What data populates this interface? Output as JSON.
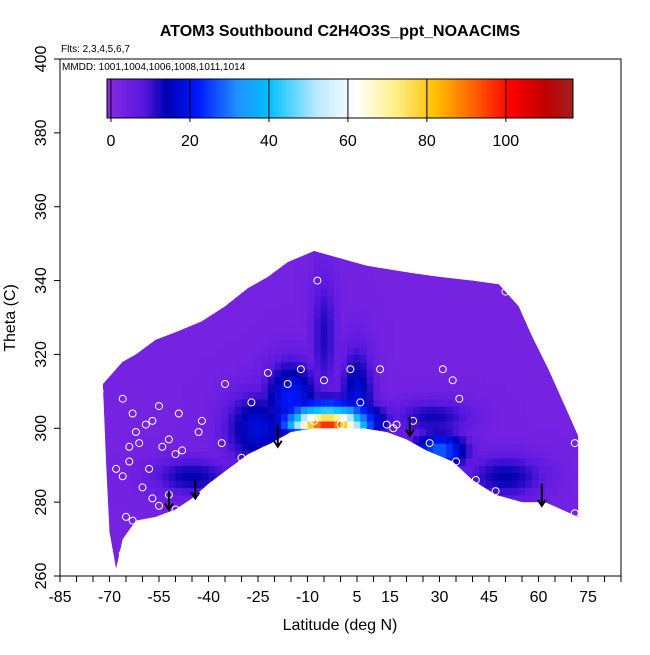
{
  "chart_data": {
    "type": "heatmap",
    "title": "ATOM3 Southbound C2H4O3S_ppt_NOAACIMS",
    "flights_label": "Flts: 2,3,4,5,6,7",
    "dates_label": "MMDD: 1001,1004,1006,1008,1011,1014",
    "xlabel": "Latitude (deg N)",
    "ylabel": "Theta (C)",
    "xlim": [
      -85,
      85
    ],
    "ylim": [
      260,
      400
    ],
    "x_ticks": [
      "-85",
      "-70",
      "-55",
      "-40",
      "-25",
      "-10",
      "5",
      "15",
      "30",
      "45",
      "60",
      "75"
    ],
    "x_tick_values": [
      -85,
      -70,
      -55,
      -40,
      -25,
      -10,
      5,
      15,
      30,
      45,
      60,
      75
    ],
    "x_minor_step": 5,
    "y_ticks": [
      "260",
      "280",
      "300",
      "320",
      "340",
      "360",
      "380",
      "400"
    ],
    "y_tick_values": [
      260,
      280,
      300,
      320,
      340,
      360,
      380,
      400
    ],
    "colorbar": {
      "range": [
        -1,
        117
      ],
      "ticks": [
        "0",
        "20",
        "40",
        "60",
        "80",
        "100"
      ],
      "tick_values": [
        0,
        20,
        40,
        60,
        80,
        100
      ],
      "stops": [
        {
          "v": -1,
          "color": "#8a2be2"
        },
        {
          "v": 8,
          "color": "#5a18e0"
        },
        {
          "v": 14,
          "color": "#0000b0"
        },
        {
          "v": 22,
          "color": "#0018ff"
        },
        {
          "v": 32,
          "color": "#2090ff"
        },
        {
          "v": 40,
          "color": "#00c0ff"
        },
        {
          "v": 52,
          "color": "#b8e8ff"
        },
        {
          "v": 62,
          "color": "#ffffff"
        },
        {
          "v": 72,
          "color": "#fff088"
        },
        {
          "v": 82,
          "color": "#ffc000"
        },
        {
          "v": 92,
          "color": "#ff6000"
        },
        {
          "v": 101,
          "color": "#ff0000"
        },
        {
          "v": 110,
          "color": "#c00000"
        },
        {
          "v": 117,
          "color": "#a02020"
        }
      ]
    },
    "field": {
      "background_value": 3,
      "upper_boundary": [
        [
          -72,
          312
        ],
        [
          -66,
          318
        ],
        [
          -62,
          320
        ],
        [
          -56,
          324
        ],
        [
          -50,
          326
        ],
        [
          -42,
          329
        ],
        [
          -35,
          333
        ],
        [
          -28,
          338
        ],
        [
          -22,
          341
        ],
        [
          -16,
          345
        ],
        [
          -8,
          348
        ],
        [
          0,
          346
        ],
        [
          8,
          344
        ],
        [
          15,
          343
        ],
        [
          22,
          342
        ],
        [
          30,
          341
        ],
        [
          40,
          340
        ],
        [
          48,
          339
        ],
        [
          54,
          333
        ],
        [
          58,
          325
        ],
        [
          63,
          316
        ],
        [
          68,
          306
        ],
        [
          72,
          298
        ]
      ],
      "lower_boundary": [
        [
          72,
          276
        ],
        [
          62,
          280
        ],
        [
          55,
          280
        ],
        [
          47,
          282
        ],
        [
          40,
          286
        ],
        [
          34,
          291
        ],
        [
          26,
          294
        ],
        [
          20,
          297
        ],
        [
          14,
          299
        ],
        [
          7,
          300
        ],
        [
          0,
          300
        ],
        [
          -8,
          300
        ],
        [
          -15,
          299
        ],
        [
          -21,
          296
        ],
        [
          -28,
          293
        ],
        [
          -34,
          289
        ],
        [
          -40,
          285
        ],
        [
          -45,
          281
        ],
        [
          -50,
          278
        ],
        [
          -56,
          276
        ],
        [
          -62,
          275
        ],
        [
          -66,
          270
        ],
        [
          -68,
          262
        ],
        [
          -70,
          272
        ],
        [
          -71,
          290
        ]
      ],
      "features": [
        {
          "lat": -4,
          "theta": 301.5,
          "value": 100,
          "dlat": 11,
          "dtheta": 2.8
        },
        {
          "lat": -4,
          "theta": 302,
          "value": 60,
          "dlat": 13,
          "dtheta": 5
        },
        {
          "lat": 5,
          "theta": 305,
          "value": 20,
          "dlat": 5,
          "dtheta": 16
        },
        {
          "lat": -15,
          "theta": 308,
          "value": 22,
          "dlat": 8,
          "dtheta": 10
        },
        {
          "lat": -25,
          "theta": 300,
          "value": 18,
          "dlat": 10,
          "dtheta": 10
        },
        {
          "lat": -45,
          "theta": 287,
          "value": 14,
          "dlat": 12,
          "dtheta": 5
        },
        {
          "lat": 30,
          "theta": 294,
          "value": 28,
          "dlat": 8,
          "dtheta": 5
        },
        {
          "lat": 50,
          "theta": 287,
          "value": 14,
          "dlat": 12,
          "dtheta": 6
        },
        {
          "lat": 28,
          "theta": 303,
          "value": 13,
          "dlat": 12,
          "dtheta": 5
        },
        {
          "lat": -5,
          "theta": 325,
          "value": 12,
          "dlat": 4,
          "dtheta": 18
        }
      ],
      "samples": [
        {
          "lat": -73,
          "theta": 310
        },
        {
          "lat": -66,
          "theta": 308
        },
        {
          "lat": -63,
          "theta": 304
        },
        {
          "lat": -62,
          "theta": 299
        },
        {
          "lat": -61,
          "theta": 296
        },
        {
          "lat": -64,
          "theta": 295
        },
        {
          "lat": -59,
          "theta": 301
        },
        {
          "lat": -57,
          "theta": 302
        },
        {
          "lat": -55,
          "theta": 306
        },
        {
          "lat": -52,
          "theta": 297
        },
        {
          "lat": -54,
          "theta": 295
        },
        {
          "lat": -50,
          "theta": 293
        },
        {
          "lat": -48,
          "theta": 294
        },
        {
          "lat": -49,
          "theta": 304
        },
        {
          "lat": -43,
          "theta": 299
        },
        {
          "lat": -42,
          "theta": 302
        },
        {
          "lat": -58,
          "theta": 289
        },
        {
          "lat": -60,
          "theta": 284
        },
        {
          "lat": -57,
          "theta": 281
        },
        {
          "lat": -55,
          "theta": 279
        },
        {
          "lat": -52,
          "theta": 282
        },
        {
          "lat": -50,
          "theta": 278
        },
        {
          "lat": -64,
          "theta": 291
        },
        {
          "lat": -66,
          "theta": 287
        },
        {
          "lat": -68,
          "theta": 289
        },
        {
          "lat": -63,
          "theta": 275
        },
        {
          "lat": -65,
          "theta": 276
        },
        {
          "lat": -61,
          "theta": 274
        },
        {
          "lat": -66,
          "theta": 266
        },
        {
          "lat": -35,
          "theta": 312
        },
        {
          "lat": -36,
          "theta": 296
        },
        {
          "lat": -30,
          "theta": 292
        },
        {
          "lat": -27,
          "theta": 307
        },
        {
          "lat": -22,
          "theta": 315
        },
        {
          "lat": -23,
          "theta": 294
        },
        {
          "lat": -12,
          "theta": 316
        },
        {
          "lat": -16,
          "theta": 312
        },
        {
          "lat": -8,
          "theta": 302
        },
        {
          "lat": -7,
          "theta": 340
        },
        {
          "lat": -5,
          "theta": 313
        },
        {
          "lat": 0,
          "theta": 301
        },
        {
          "lat": 3,
          "theta": 316
        },
        {
          "lat": 6,
          "theta": 307
        },
        {
          "lat": 12,
          "theta": 316
        },
        {
          "lat": 14,
          "theta": 301
        },
        {
          "lat": 16,
          "theta": 300
        },
        {
          "lat": 17,
          "theta": 301
        },
        {
          "lat": 22,
          "theta": 302
        },
        {
          "lat": 27,
          "theta": 296
        },
        {
          "lat": 31,
          "theta": 316
        },
        {
          "lat": 34,
          "theta": 313
        },
        {
          "lat": 36,
          "theta": 308
        },
        {
          "lat": 35,
          "theta": 291
        },
        {
          "lat": 41,
          "theta": 286
        },
        {
          "lat": 47,
          "theta": 283
        },
        {
          "lat": 50,
          "theta": 337
        },
        {
          "lat": 71,
          "theta": 296
        },
        {
          "lat": 71,
          "theta": 277
        }
      ],
      "arrows": [
        {
          "lat": -52,
          "theta_top": 283,
          "theta_tip": 278
        },
        {
          "lat": -44,
          "theta_top": 286,
          "theta_tip": 281
        },
        {
          "lat": -19,
          "theta_top": 301,
          "theta_tip": 295
        },
        {
          "lat": 21,
          "theta_top": 303,
          "theta_tip": 298
        },
        {
          "lat": 61,
          "theta_top": 285,
          "theta_tip": 279
        }
      ]
    }
  }
}
